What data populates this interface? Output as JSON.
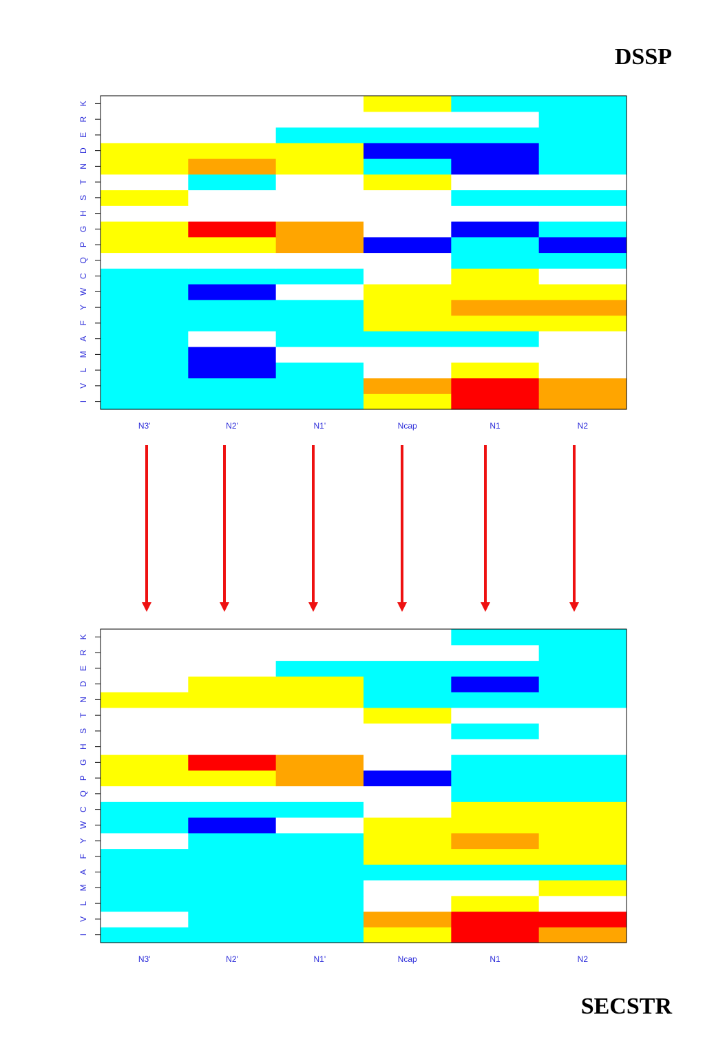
{
  "panels": {
    "top_label": "DSSP",
    "bottom_label": "SECSTR"
  },
  "legend_colors": {
    "W": "#ffffff",
    "C": "#00ffff",
    "Y": "#ffff00",
    "O": "#ffa500",
    "R": "#ff0000",
    "B": "#0000ff"
  },
  "arrow_color": "#ee1111",
  "chart_data": [
    {
      "type": "heatmap",
      "title": "DSSP",
      "categories": [
        "N3'",
        "N2'",
        "N1'",
        "Ncap",
        "N1",
        "N2"
      ],
      "rows": [
        "I",
        "V",
        "L",
        "M",
        "A",
        "F",
        "Y",
        "W",
        "C",
        "Q",
        "P",
        "G",
        "H",
        "S",
        "T",
        "N",
        "D",
        "E",
        "R",
        "K"
      ],
      "grid": [
        "CCCYRO",
        "CCCORO",
        "CBCWYW",
        "CBWWWW",
        "CWCCCW",
        "CCCYYY",
        "CCCYOO",
        "CBWYYY",
        "CCCWYW",
        "WWWWCC",
        "YYOBCB",
        "YROWBC",
        "WWWWWW",
        "YWWWCC",
        "WCWYWW",
        "YOYCBC",
        "YYYBBC",
        "WWCCCC",
        "WWWWWC",
        "WWWYCC"
      ]
    },
    {
      "type": "heatmap",
      "title": "SECSTR",
      "categories": [
        "N3'",
        "N2'",
        "N1'",
        "Ncap",
        "N1",
        "N2"
      ],
      "rows": [
        "I",
        "V",
        "L",
        "M",
        "A",
        "F",
        "Y",
        "W",
        "C",
        "Q",
        "P",
        "G",
        "H",
        "S",
        "T",
        "N",
        "D",
        "E",
        "R",
        "K"
      ],
      "grid": [
        "CCCYRO",
        "WCCORR",
        "CCCWYW",
        "CCCWWY",
        "CCCCCC",
        "CCCYYY",
        "WCCYOY",
        "CBWYYY",
        "CCCWYY",
        "WWWWCC",
        "YYOBCC",
        "YROWCC",
        "WWWWWW",
        "WWWWCW",
        "WWWYWW",
        "YYYCCC",
        "WYYCBC",
        "WWCCCC",
        "WWWWWC",
        "WWWWCC"
      ]
    }
  ]
}
